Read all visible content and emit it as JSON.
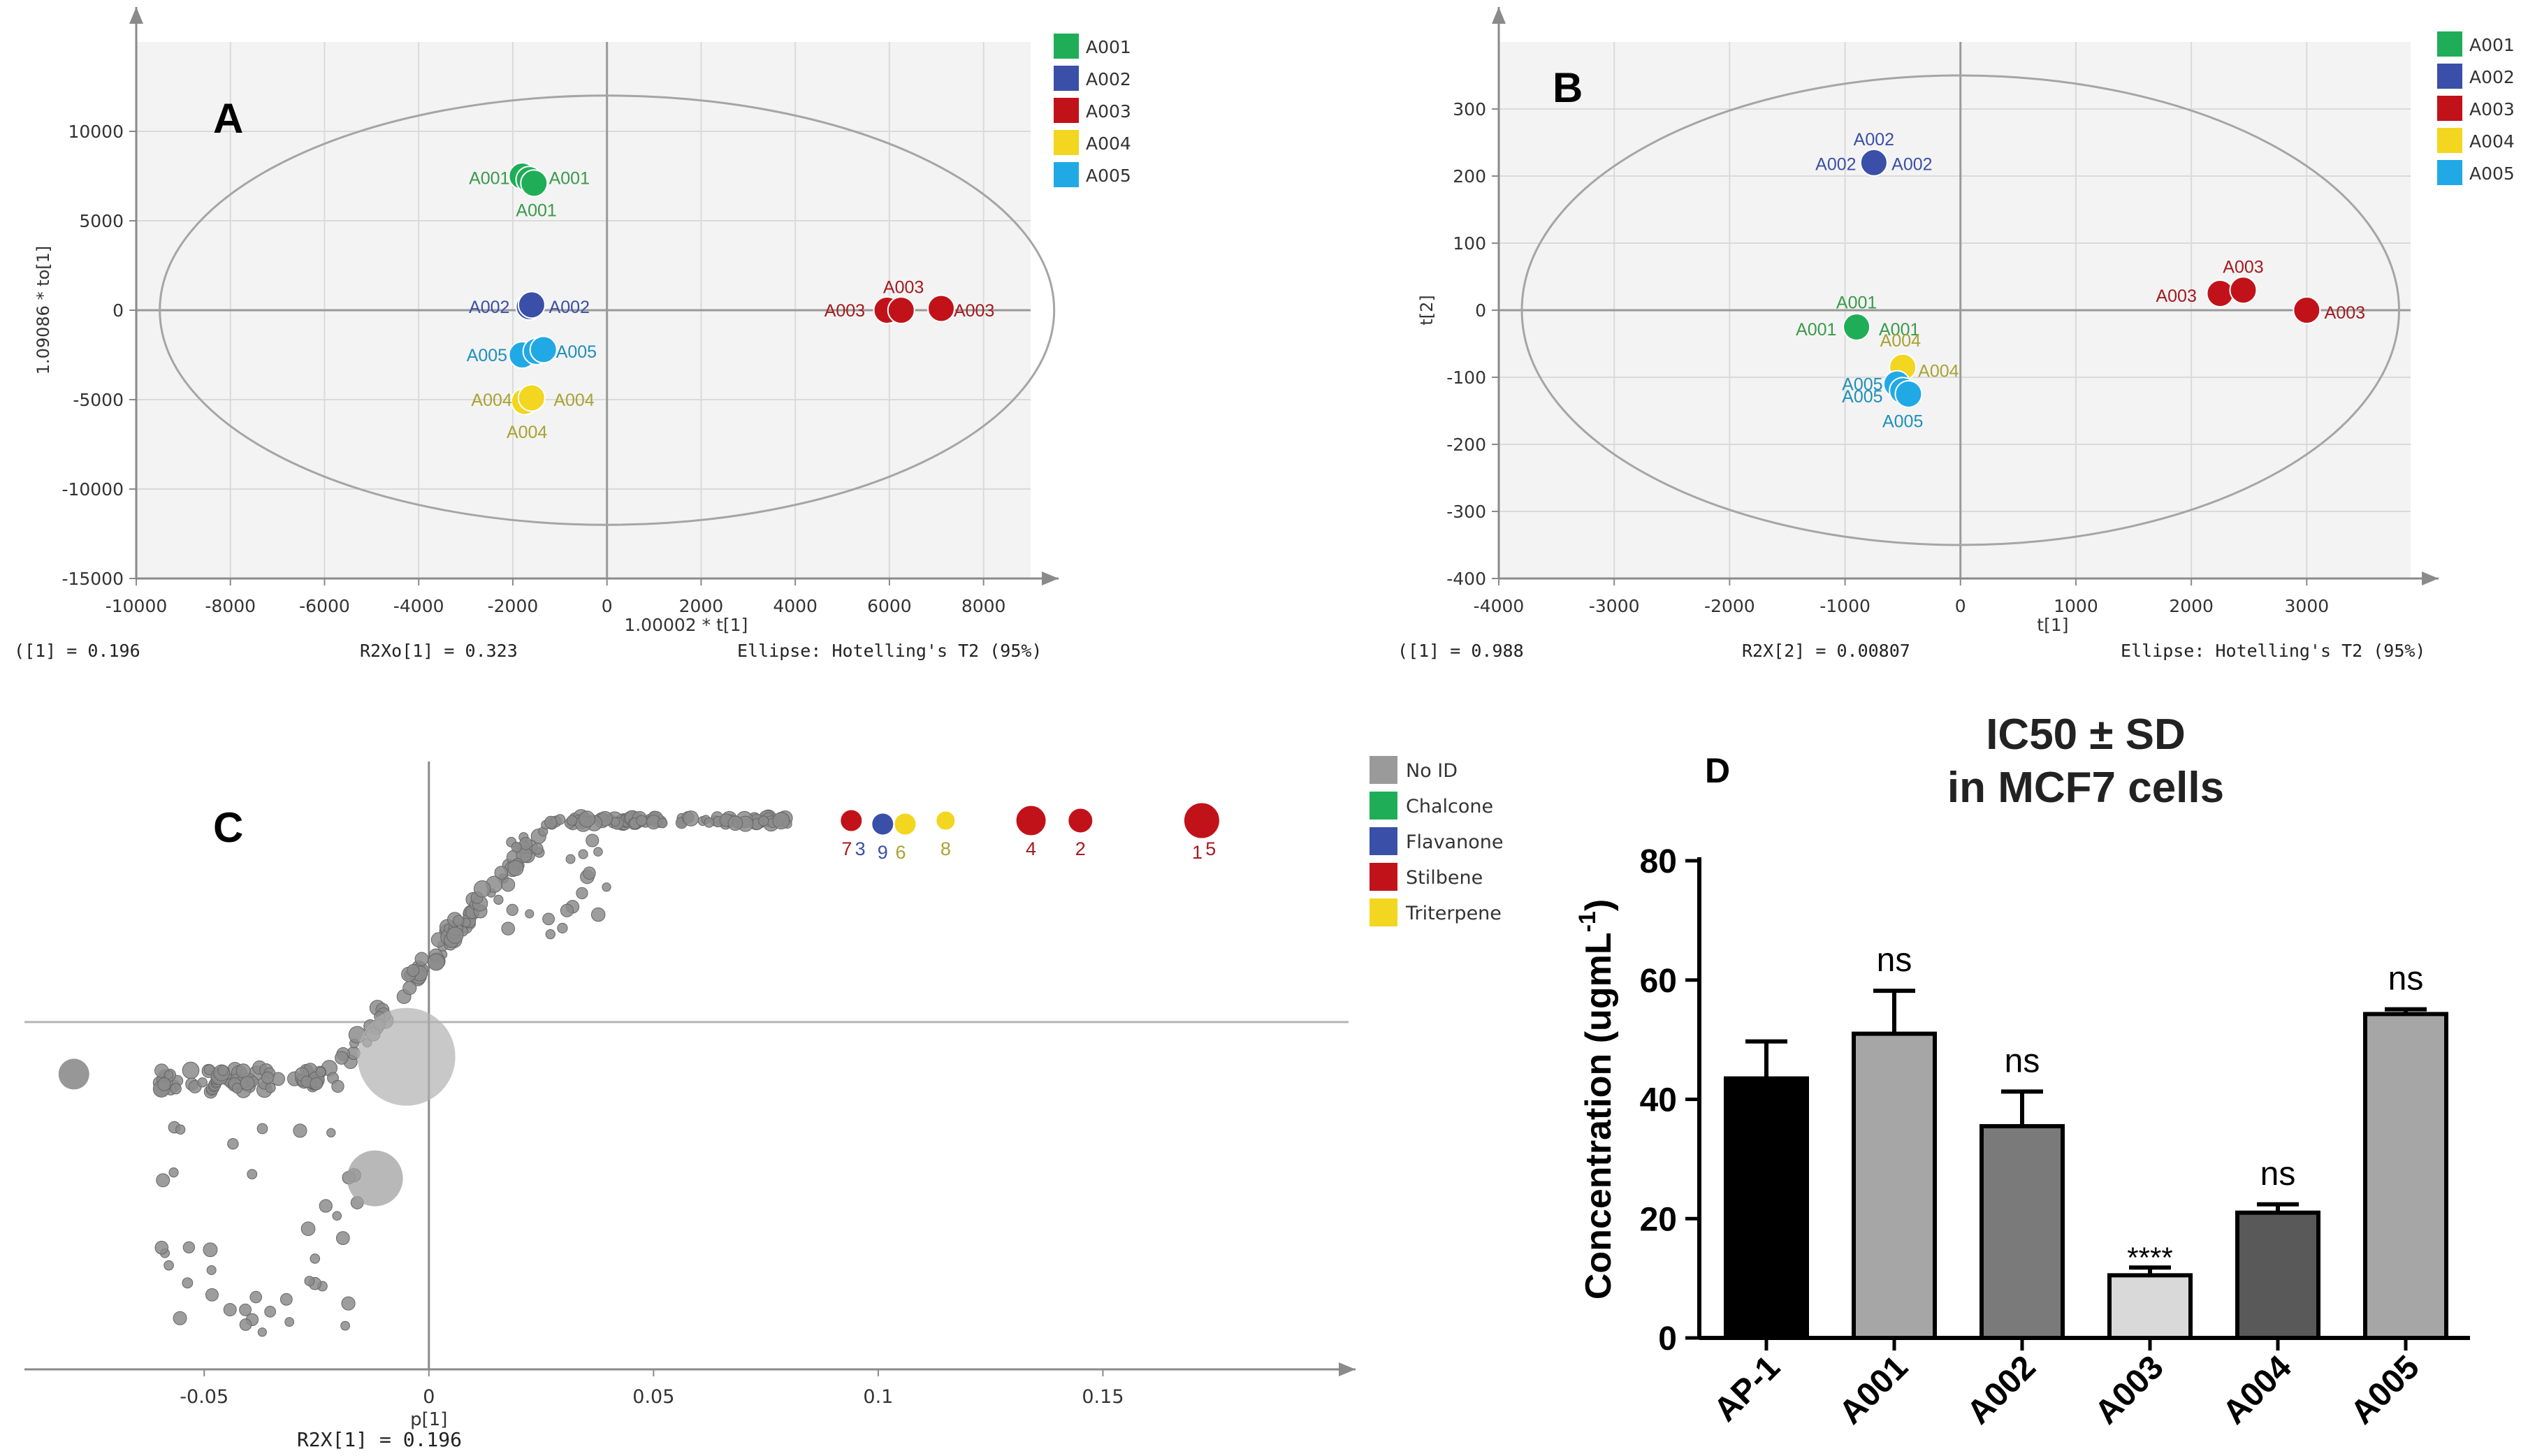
{
  "colors": {
    "A001": "#1fae57",
    "A002": "#3a4fa8",
    "A003": "#c1121a",
    "A004": "#f2d61f",
    "A005": "#21a9e6",
    "A001_text": "#3a9a4a",
    "A002_text": "#3a4fa8",
    "A003_text": "#a41a1f",
    "A004_text": "#a9a233",
    "A005_text": "#1f8fb9",
    "noid": "#8c8c8c",
    "panel_bg": "#f3f3f3",
    "grid": "#dadada"
  },
  "chart_data": [
    {
      "id": "A",
      "type": "scatter",
      "panel_label": "A",
      "xlabel": "1.00002 * t[1]",
      "ylabel": "1.09086 * to[1]",
      "xlim": [
        -10000,
        9000
      ],
      "ylim": [
        -15000,
        15000
      ],
      "xticks": [
        -10000,
        -8000,
        -6000,
        -4000,
        -2000,
        0,
        2000,
        4000,
        6000,
        8000
      ],
      "yticks": [
        -15000,
        -10000,
        -5000,
        0,
        5000,
        10000
      ],
      "ellipse": {
        "rx": 9500,
        "ry": 12000
      },
      "legend": [
        "A001",
        "A002",
        "A003",
        "A004",
        "A005"
      ],
      "footer": {
        "left": "([1] = 0.196",
        "middle": "R2Xo[1] = 0.323",
        "right": "Ellipse: Hotelling's T2 (95%)"
      },
      "points": [
        {
          "group": "A001",
          "x": -1800,
          "y": 7500
        },
        {
          "group": "A001",
          "x": -1650,
          "y": 7300
        },
        {
          "group": "A001",
          "x": -1550,
          "y": 7100
        },
        {
          "group": "A002",
          "x": -1650,
          "y": 200
        },
        {
          "group": "A002",
          "x": -1600,
          "y": 300
        },
        {
          "group": "A003",
          "x": 5950,
          "y": 0
        },
        {
          "group": "A003",
          "x": 6250,
          "y": 0
        },
        {
          "group": "A003",
          "x": 7100,
          "y": 100
        },
        {
          "group": "A004",
          "x": -1750,
          "y": -5100
        },
        {
          "group": "A004",
          "x": -1600,
          "y": -4900
        },
        {
          "group": "A005",
          "x": -1800,
          "y": -2500
        },
        {
          "group": "A005",
          "x": -1500,
          "y": -2300
        },
        {
          "group": "A005",
          "x": -1350,
          "y": -2200
        }
      ],
      "labels": [
        {
          "text": "A001",
          "group": "A001",
          "x": -2500,
          "y": 7400
        },
        {
          "text": "A001",
          "group": "A001",
          "x": -800,
          "y": 7400
        },
        {
          "text": "A001",
          "group": "A001",
          "x": -1500,
          "y": 5600
        },
        {
          "text": "A002",
          "group": "A002",
          "x": -2500,
          "y": 200
        },
        {
          "text": "A002",
          "group": "A002",
          "x": -800,
          "y": 200
        },
        {
          "text": "A003",
          "group": "A003",
          "x": 6300,
          "y": 1300
        },
        {
          "text": "A003",
          "group": "A003",
          "x": 5050,
          "y": 0
        },
        {
          "text": "A003",
          "group": "A003",
          "x": 7800,
          "y": 0
        },
        {
          "text": "A004",
          "group": "A004",
          "x": -2450,
          "y": -5000
        },
        {
          "text": "A004",
          "group": "A004",
          "x": -700,
          "y": -5000
        },
        {
          "text": "A004",
          "group": "A004",
          "x": -1700,
          "y": -6800
        },
        {
          "text": "A005",
          "group": "A005",
          "x": -2550,
          "y": -2500
        },
        {
          "text": "A005",
          "group": "A005",
          "x": -650,
          "y": -2300
        }
      ]
    },
    {
      "id": "B",
      "type": "scatter",
      "panel_label": "B",
      "xlabel": "t[1]",
      "ylabel": "t[2]",
      "xlim": [
        -4000,
        3900
      ],
      "ylim": [
        -400,
        400
      ],
      "xticks": [
        -4000,
        -3000,
        -2000,
        -1000,
        0,
        1000,
        2000,
        3000
      ],
      "yticks": [
        -400,
        -300,
        -200,
        -100,
        0,
        100,
        200,
        300
      ],
      "ellipse": {
        "rx": 3800,
        "ry": 350
      },
      "legend": [
        "A001",
        "A002",
        "A003",
        "A004",
        "A005"
      ],
      "footer": {
        "left": "([1] = 0.988",
        "middle": "R2X[2] = 0.00807",
        "right": "Ellipse: Hotelling's T2 (95%)"
      },
      "points": [
        {
          "group": "A001",
          "x": -900,
          "y": -25
        },
        {
          "group": "A002",
          "x": -750,
          "y": 220
        },
        {
          "group": "A003",
          "x": 2250,
          "y": 25
        },
        {
          "group": "A003",
          "x": 2450,
          "y": 30
        },
        {
          "group": "A003",
          "x": 3000,
          "y": 0
        },
        {
          "group": "A004",
          "x": -500,
          "y": -85
        },
        {
          "group": "A005",
          "x": -550,
          "y": -110
        },
        {
          "group": "A005",
          "x": -500,
          "y": -120
        },
        {
          "group": "A005",
          "x": -450,
          "y": -125
        }
      ],
      "labels": [
        {
          "text": "A002",
          "group": "A002",
          "x": -750,
          "y": 255
        },
        {
          "text": "A002",
          "group": "A002",
          "x": -1080,
          "y": 218
        },
        {
          "text": "A002",
          "group": "A002",
          "x": -420,
          "y": 218
        },
        {
          "text": "A003",
          "group": "A003",
          "x": 2450,
          "y": 65
        },
        {
          "text": "A003",
          "group": "A003",
          "x": 1870,
          "y": 22
        },
        {
          "text": "A003",
          "group": "A003",
          "x": 3330,
          "y": -3
        },
        {
          "text": "A001",
          "group": "A001",
          "x": -900,
          "y": 12
        },
        {
          "text": "A001",
          "group": "A001",
          "x": -1250,
          "y": -28
        },
        {
          "text": "A001",
          "group": "A001",
          "x": -530,
          "y": -28
        },
        {
          "text": "A004",
          "group": "A004",
          "x": -520,
          "y": -45
        },
        {
          "text": "A004",
          "group": "A004",
          "x": -190,
          "y": -90
        },
        {
          "text": "A005",
          "group": "A005",
          "x": -850,
          "y": -110
        },
        {
          "text": "A005",
          "group": "A005",
          "x": -850,
          "y": -128
        },
        {
          "text": "A005",
          "group": "A005",
          "x": -500,
          "y": -165
        }
      ]
    },
    {
      "id": "C",
      "type": "scatter",
      "panel_label": "C",
      "xlabel": "p[1]",
      "footer": "R2X[1] = 0.196",
      "xlim": [
        -0.09,
        0.2
      ],
      "ylim": [
        -1.0,
        0.75
      ],
      "xticks": [
        -0.05,
        0,
        0.05,
        0.1,
        0.15
      ],
      "xtick_labels": [
        "-0.05",
        "0",
        "0.05",
        "0.1",
        "0.15"
      ],
      "hline_y": 0.0,
      "legend": [
        {
          "name": "No ID",
          "color": "#9a9a9a"
        },
        {
          "name": "Chalcone",
          "color": "#1fae57"
        },
        {
          "name": "Flavanone",
          "color": "#3a4fa8"
        },
        {
          "name": "Stilbene",
          "color": "#c1121a"
        },
        {
          "name": "Triterpene",
          "color": "#f2d61f"
        }
      ],
      "highlighted": [
        {
          "class": "Stilbene",
          "x": 0.094,
          "y": 0.58,
          "r": 0.8
        },
        {
          "class": "Flavanone",
          "x": 0.101,
          "y": 0.57,
          "r": 0.8
        },
        {
          "class": "Triterpene",
          "x": 0.106,
          "y": 0.57,
          "r": 0.8
        },
        {
          "class": "Triterpene",
          "x": 0.115,
          "y": 0.58,
          "r": 0.7
        },
        {
          "class": "Stilbene",
          "x": 0.134,
          "y": 0.58,
          "r": 1.1
        },
        {
          "class": "Stilbene",
          "x": 0.145,
          "y": 0.58,
          "r": 0.9
        },
        {
          "class": "Stilbene",
          "x": 0.172,
          "y": 0.58,
          "r": 1.3
        }
      ],
      "highlight_labels": [
        {
          "text": "7",
          "class": "Stilbene",
          "x": 0.093,
          "y": 0.48
        },
        {
          "text": "3",
          "class": "Flavanone",
          "x": 0.096,
          "y": 0.48
        },
        {
          "text": "9",
          "class": "Flavanone",
          "x": 0.101,
          "y": 0.47
        },
        {
          "text": "6",
          "class": "Triterpene",
          "x": 0.105,
          "y": 0.47
        },
        {
          "text": "8",
          "class": "Triterpene",
          "x": 0.115,
          "y": 0.48
        },
        {
          "text": "4",
          "class": "Stilbene",
          "x": 0.134,
          "y": 0.48
        },
        {
          "text": "2",
          "class": "Stilbene",
          "x": 0.145,
          "y": 0.48
        },
        {
          "text": "1",
          "class": "Stilbene",
          "x": 0.171,
          "y": 0.47
        },
        {
          "text": "5",
          "class": "Stilbene",
          "x": 0.174,
          "y": 0.48
        }
      ]
    },
    {
      "id": "D",
      "type": "bar",
      "panel_label": "D",
      "title_line1": "IC50 ± SD",
      "title_line2": "in MCF7 cells",
      "ylabel": "Concentration (ugmL",
      "ylabel_sup": "-1",
      "ylabel_end": ")",
      "ylim": [
        0,
        80
      ],
      "yticks": [
        0,
        20,
        40,
        60,
        80
      ],
      "categories": [
        "AP-1",
        "A001",
        "A002",
        "A003",
        "A004",
        "A005"
      ],
      "values": [
        43.5,
        51,
        35.5,
        10.5,
        21,
        54.3
      ],
      "sd": [
        6.2,
        7.2,
        5.8,
        1.3,
        1.4,
        0.8
      ],
      "fills": [
        "#000000",
        "#a6a6a6",
        "#7a7a7a",
        "#d9d9d9",
        "#595959",
        "#a6a6a6"
      ],
      "annotations": [
        "",
        "ns",
        "ns",
        "****",
        "ns",
        "ns"
      ]
    }
  ]
}
